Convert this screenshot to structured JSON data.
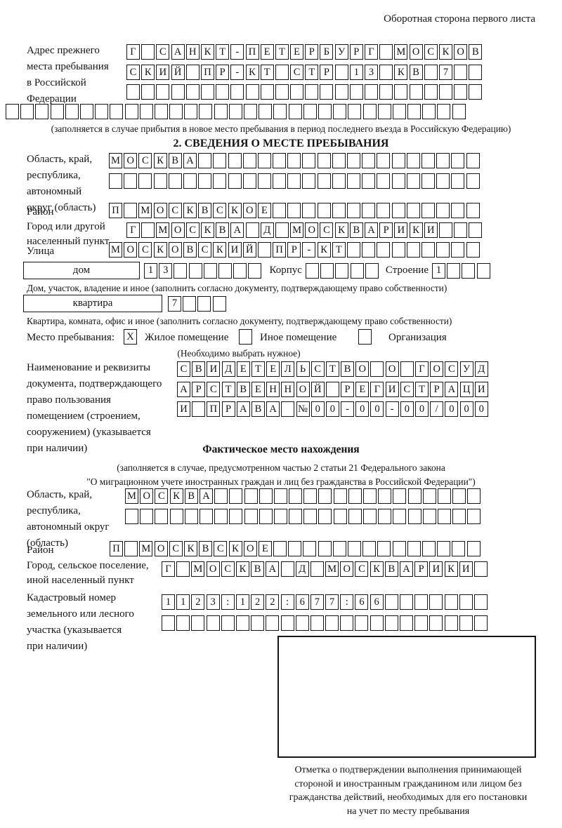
{
  "colors": {
    "ink": "#151515",
    "paper": "#ffffff"
  },
  "page": {
    "header_note": "Оборотная сторона первого листа"
  },
  "prev_address": {
    "label_lines": [
      "Адрес прежнего",
      "места пребывания",
      "в Российской",
      "Федерации"
    ],
    "rows": [
      {
        "len": 24,
        "text": "Г САНКТ-ПЕТЕРБУРГ МОСКОВ"
      },
      {
        "len": 24,
        "text": "СКИЙ ПР-КТ СТР 13 КВ 7"
      },
      {
        "len": 24,
        "text": ""
      },
      {
        "len": 31,
        "text": ""
      }
    ],
    "note": "(заполняется в случае прибытия в новое место пребывания в период последнего въезда в Российскую Федерацию)"
  },
  "section2": {
    "title": "2. СВЕДЕНИЯ О МЕСТЕ ПРЕБЫВАНИЯ",
    "region": {
      "label_lines": [
        "Область, край,",
        "республика,",
        "автономный",
        "округ (область)"
      ],
      "rows": [
        {
          "len": 25,
          "text": "МОСКВА"
        },
        {
          "len": 25,
          "text": ""
        }
      ]
    },
    "district": {
      "label": "Район",
      "cells": {
        "len": 25,
        "text": "П МОСКВСКОЕ"
      }
    },
    "city": {
      "label_lines": [
        "Город или другой",
        "населенный пункт"
      ],
      "cells": {
        "len": 24,
        "text": "Г МОСКВА Д МОСКВАРИКИ"
      }
    },
    "street": {
      "label": "Улица",
      "cells": {
        "len": 25,
        "text": "МОСКОВСКИЙ ПР-КТ"
      }
    },
    "house": {
      "box_label": "дом",
      "cells": {
        "len": 8,
        "text": "13"
      },
      "korpus_label": "Корпус",
      "korpus_cells": {
        "len": 5,
        "text": ""
      },
      "stroenie_label": "Строение",
      "stroenie_cells": {
        "len": 4,
        "text": "1"
      },
      "note": "Дом, участок, владение и иное (заполнить согласно документу, подтверждающему право собственности)"
    },
    "apartment": {
      "box_label": "квартира",
      "cells": {
        "len": 4,
        "text": "7"
      },
      "note": "Квартира, комната, офис и иное (заполнить согласно документу, подтверждающему право собственности)"
    },
    "stay_type": {
      "label": "Место пребывания:",
      "options": [
        {
          "label": "Жилое помещение",
          "mark": "X"
        },
        {
          "label": "Иное помещение",
          "mark": ""
        },
        {
          "label": "Организация",
          "mark": ""
        }
      ],
      "note": "(Необходимо выбрать нужное)"
    },
    "document": {
      "label_lines": [
        "Наименование и реквизиты",
        "документа, подтверждающего",
        "право пользования",
        "помещением (строением,",
        "сооружением) (указывается",
        "при наличии)"
      ],
      "rows": [
        {
          "len": 21,
          "text": "СВИДЕТЕЛЬСТВО О ГОСУД"
        },
        {
          "len": 21,
          "text": "АРСТВЕННОЙ РЕГИСТРАЦИ"
        },
        {
          "len": 21,
          "text": "И ПРАВА №00-00-00/000"
        }
      ]
    }
  },
  "actual_location": {
    "title": "Фактическое место нахождения",
    "note_lines": [
      "(заполняется в случае, предусмотренном частью 2 статьи 21 Федерального закона",
      "\"О миграционном учете иностранных граждан и лиц без гражданства в Российской Федерации\")"
    ],
    "region": {
      "label_lines": [
        "Область, край,",
        "республика,",
        "автономный округ",
        "(область)"
      ],
      "rows": [
        {
          "len": 24,
          "text": "МОСКВА"
        },
        {
          "len": 24,
          "text": ""
        }
      ]
    },
    "district": {
      "label": "Район",
      "cells": {
        "len": 25,
        "text": "П МОСКВСКОЕ"
      }
    },
    "city": {
      "label_lines": [
        "Город, сельское поселение,",
        "иной населенный пункт"
      ],
      "cells": {
        "len": 22,
        "text": "Г МОСКВА Д МОСКВАРИКИ"
      }
    },
    "cadastral": {
      "label_lines": [
        "Кадастровый номер",
        "земельного или лесного",
        "участка (указывается",
        "при наличии)"
      ],
      "rows": [
        {
          "len": 22,
          "text": "1123:122:677:66"
        },
        {
          "len": 22,
          "text": ""
        }
      ]
    },
    "stamp_note_lines": [
      "Отметка о подтверждении выполнения принимающей",
      "стороной и иностранным гражданином или лицом без",
      "гражданства действий, необходимых для его постановки",
      "на учет по месту пребывания"
    ]
  }
}
